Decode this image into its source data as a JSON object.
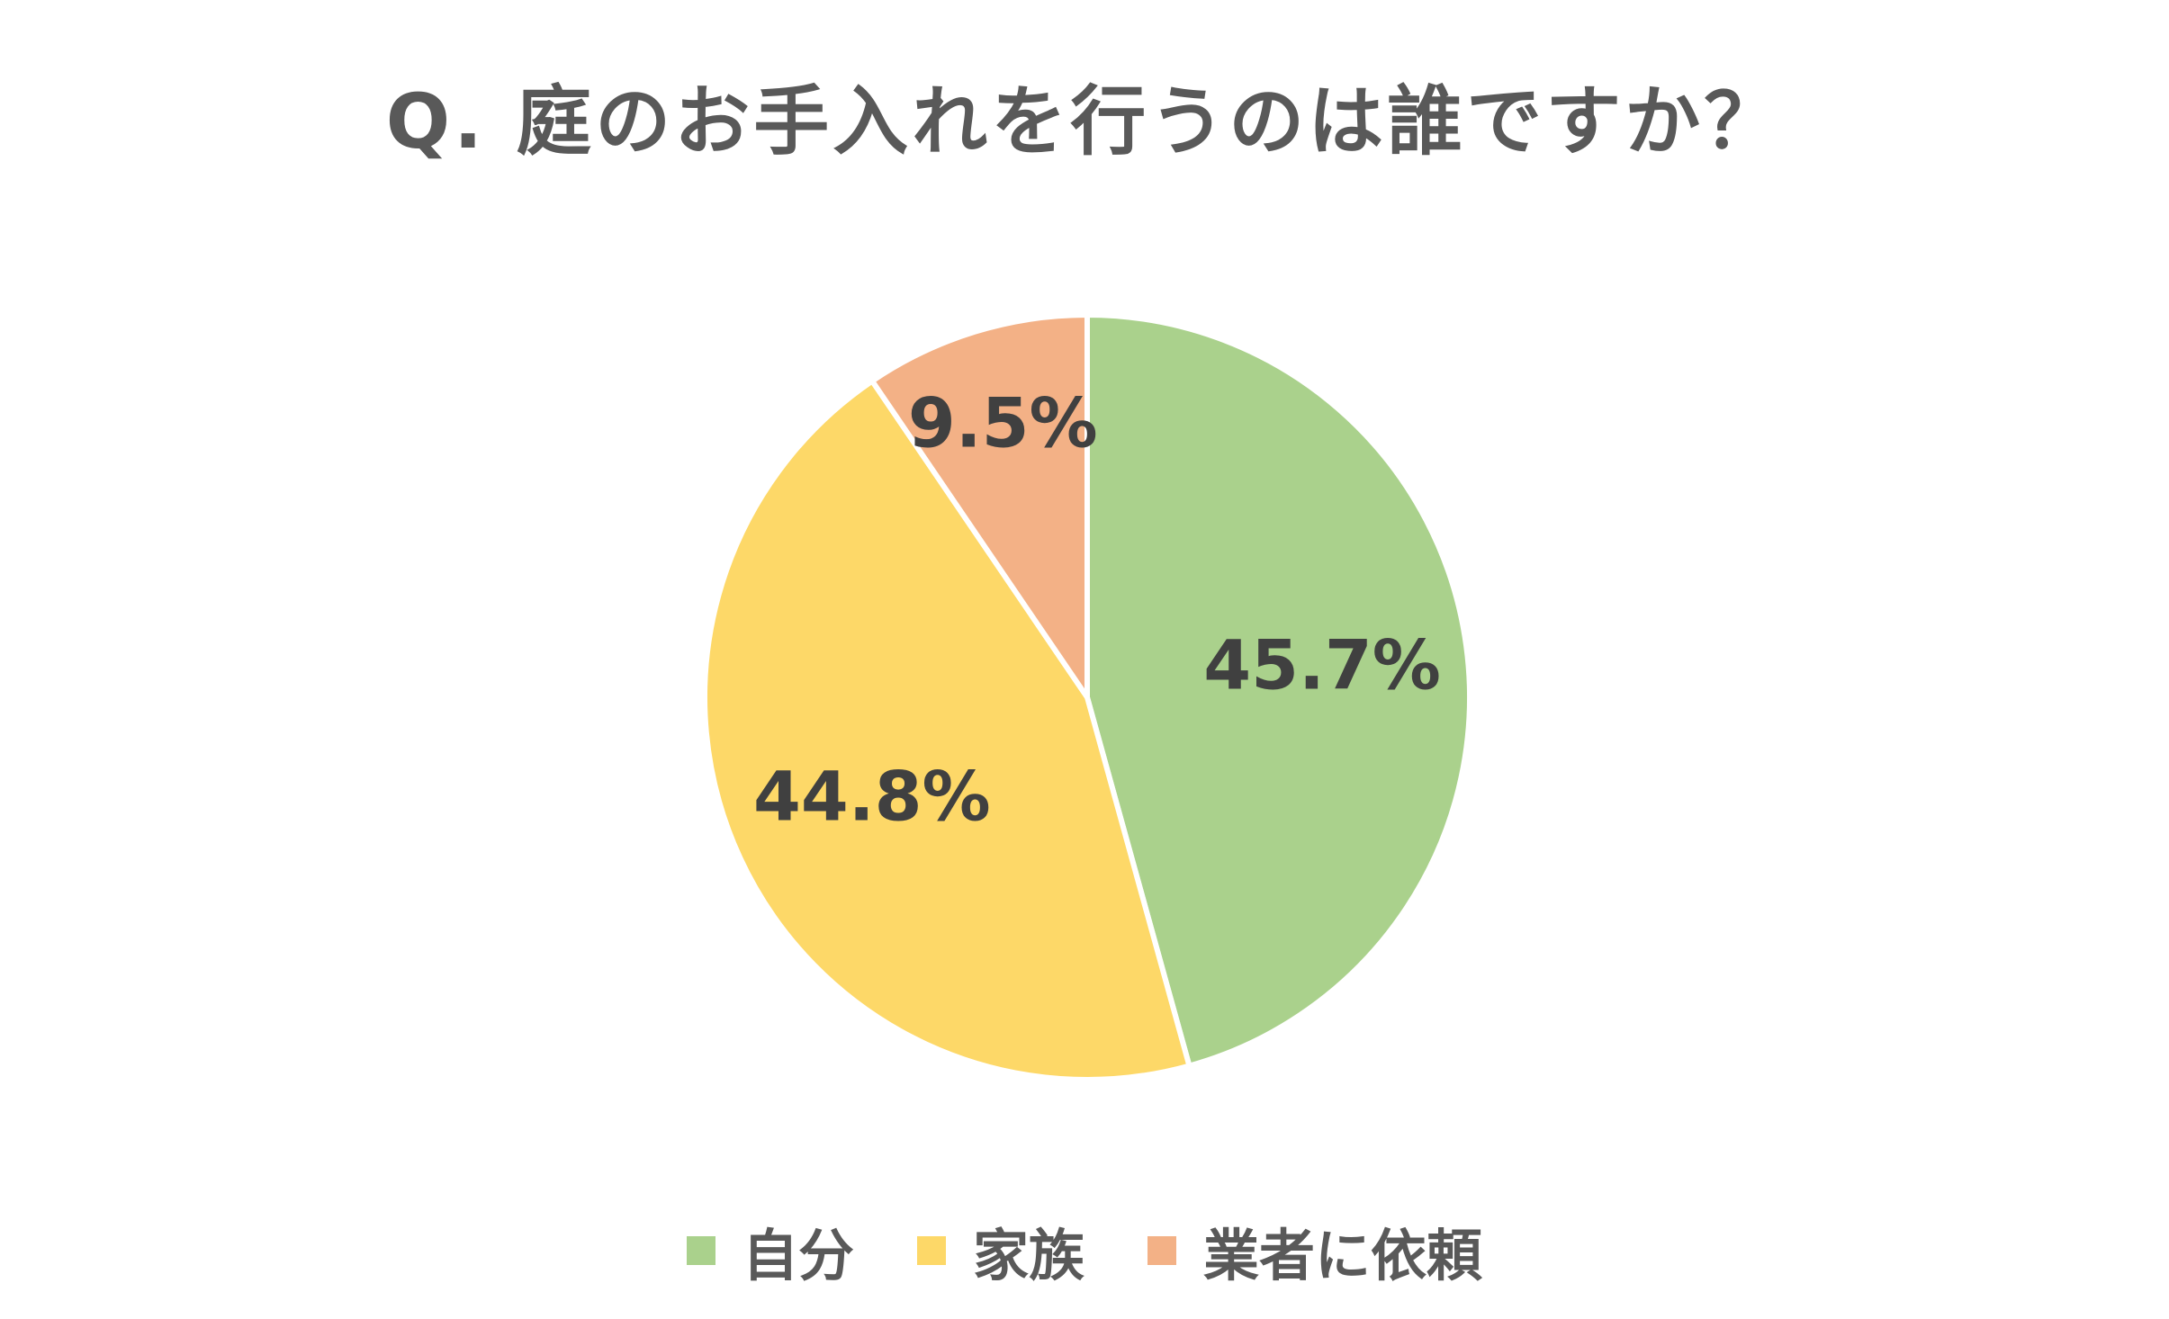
{
  "chart_data": {
    "type": "pie",
    "title": "Q. 庭のお手入れを行うのは誰ですか？",
    "categories": [
      "自分",
      "家族",
      "業者に依頼"
    ],
    "values": [
      45.7,
      44.8,
      9.5
    ],
    "labels": [
      "45.7%",
      "44.8%",
      "9.5%"
    ],
    "colors": [
      "#AAD18C",
      "#FDD868",
      "#F3B186"
    ],
    "start_angle": "12 o'clock, clockwise",
    "legend": "bottom"
  }
}
